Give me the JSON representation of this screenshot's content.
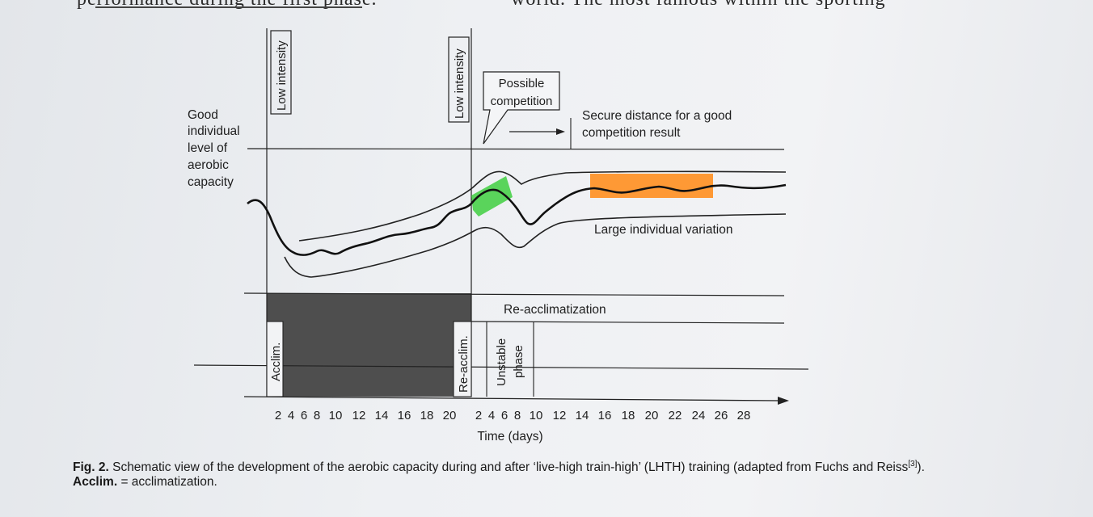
{
  "page_top": {
    "left_fragment": "performance during the first phase.",
    "right_fragment": "world.  The  most  famous  within  the  sporting"
  },
  "figure": {
    "y_label": [
      "Good",
      "individual",
      "level of",
      "aerobic",
      "capacity"
    ],
    "low_intensity_1": "Low intensity",
    "low_intensity_2": "Low intensity",
    "possible_competition": [
      "Possible",
      "competition"
    ],
    "secure_distance": [
      "Secure distance for a good",
      "competition result"
    ],
    "large_variation": "Large individual variation",
    "reacclimatization": "Re-acclimatization",
    "acclim": "Acclim.",
    "reacclim": "Re-acclim.",
    "unstable_phase": [
      "Unstable",
      "phase"
    ],
    "x_ticks_phase1": [
      "2",
      "4",
      "6",
      "8",
      "10",
      "12",
      "14",
      "16",
      "18",
      "20"
    ],
    "x_ticks_phase2": [
      "2",
      "4",
      "6",
      "8",
      "10",
      "12",
      "14",
      "16",
      "18",
      "20",
      "22",
      "24",
      "26",
      "28"
    ],
    "x_label": "Time (days)",
    "highlight_colors": {
      "green": "#3fcf3f",
      "orange": "#ff8c1a"
    }
  },
  "caption": {
    "fig_label": "Fig. 2.",
    "text_1": " Schematic view of the development of the aerobic capacity during and after ‘live-high train-high’ (LHTH) training (adapted from Fuchs and Reiss",
    "ref": "[3]",
    "text_2": "). ",
    "acclim_bold": "Acclim.",
    "text_3": " = acclimatization."
  }
}
